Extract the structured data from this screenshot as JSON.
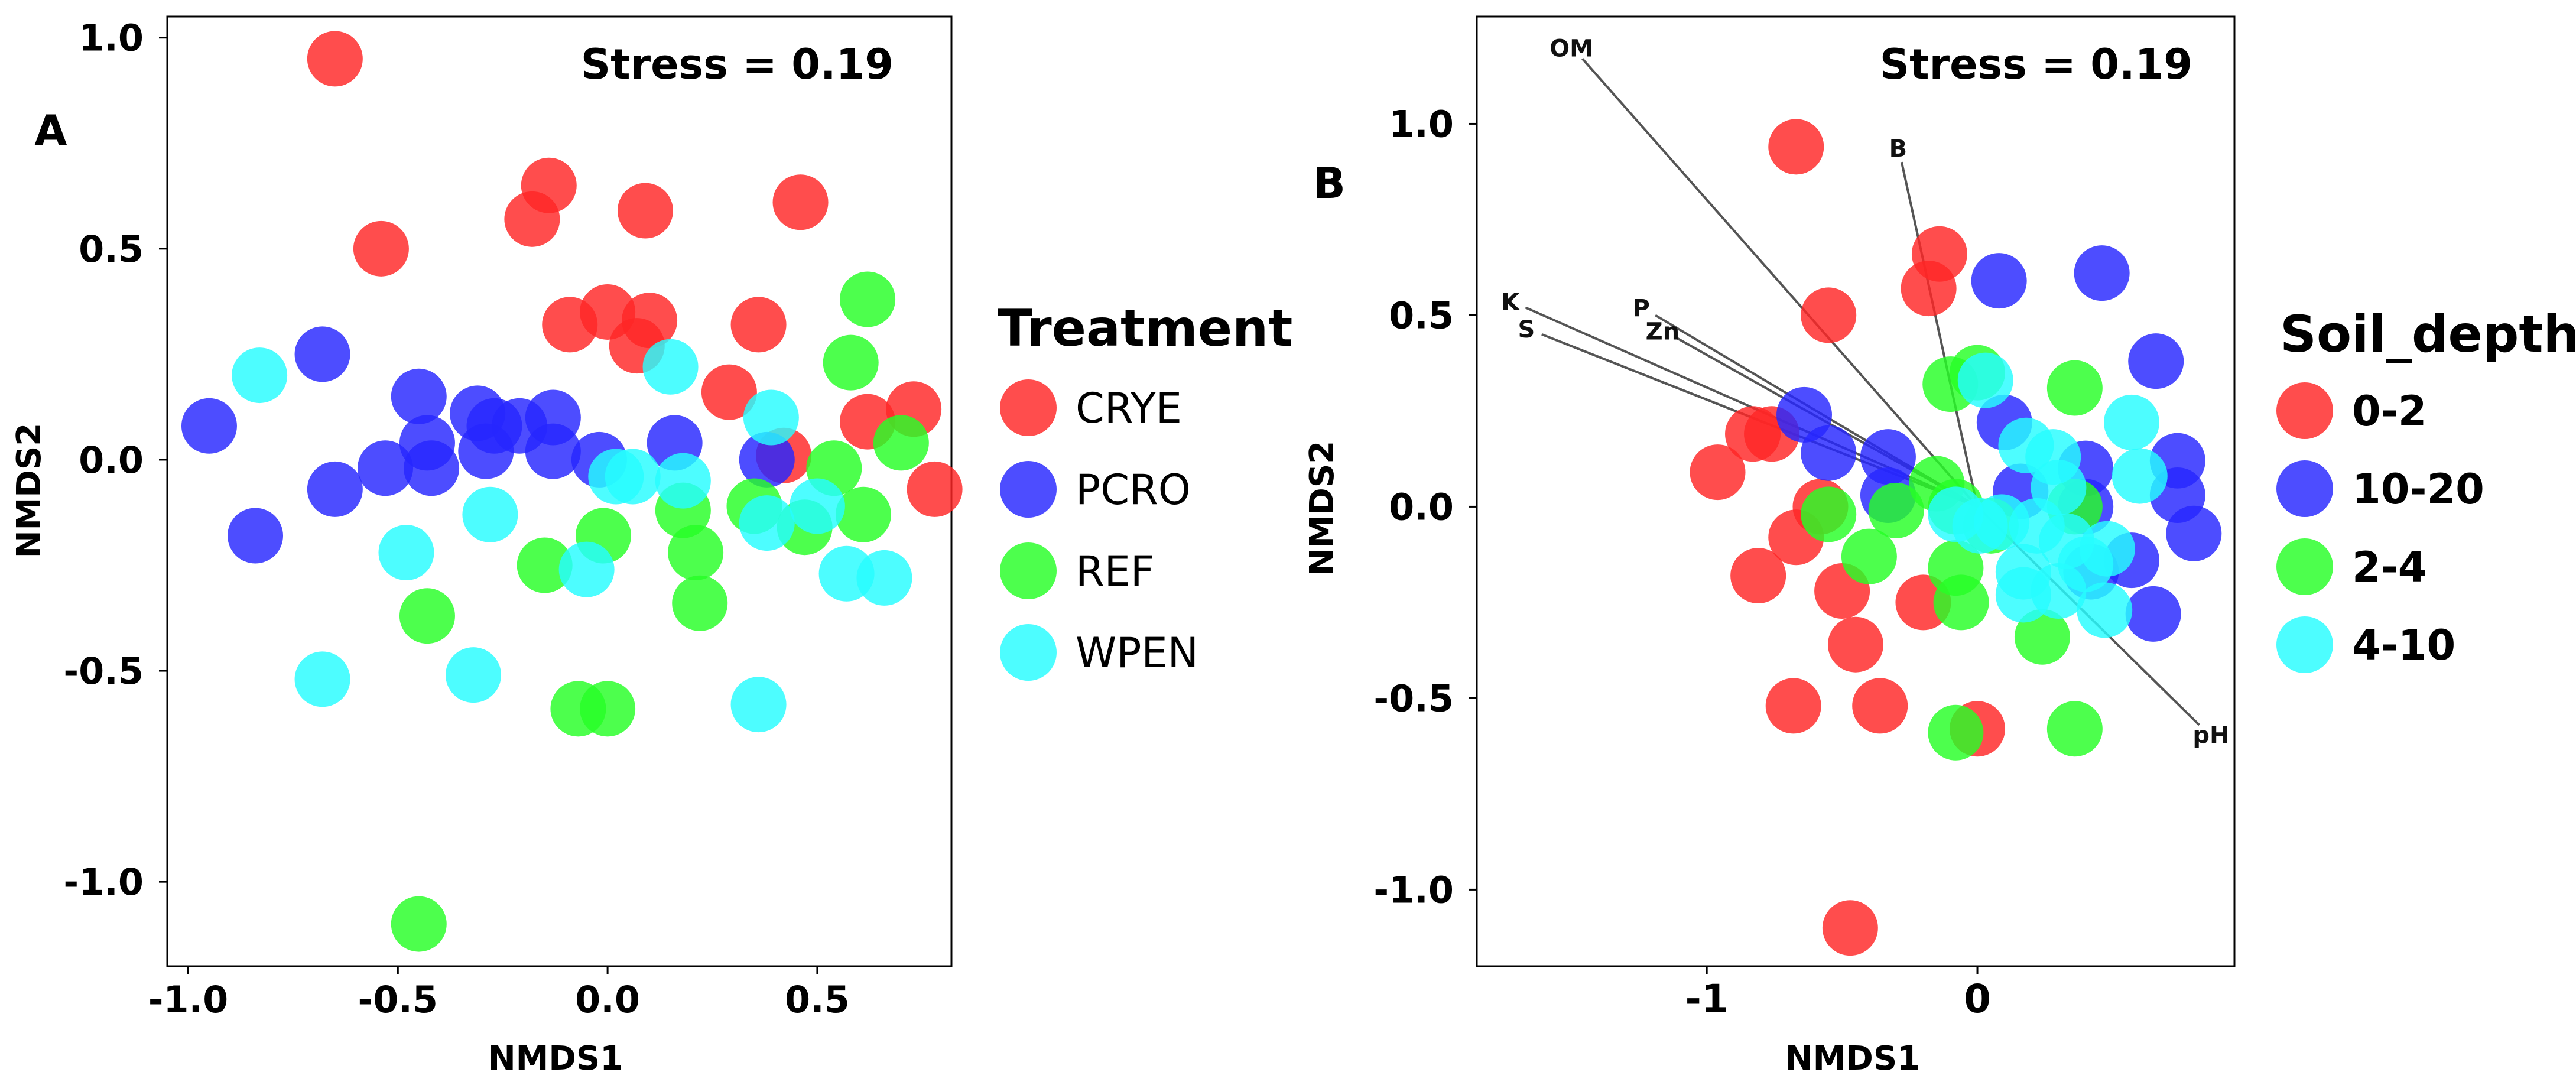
{
  "colors": {
    "CRYE": "#ff2626",
    "PCRO": "#2626ff",
    "REF": "#26ff26",
    "WPEN": "#26fcff",
    "depth_0_2": "#ff2626",
    "depth_10_20": "#2626ff",
    "depth_2_4": "#26ff26",
    "depth_4_10": "#26fcff",
    "arrow": "#555555"
  },
  "chart_data": [
    {
      "panel": "A",
      "type": "scatter",
      "xlabel": "NMDS1",
      "ylabel": "NMDS2",
      "stress_label": "Stress = 0.19",
      "xlim": [
        -1.05,
        0.82
      ],
      "ylim": [
        -1.2,
        1.05
      ],
      "xticks": [
        {
          "v": -1.0,
          "label": "-1.0"
        },
        {
          "v": -0.5,
          "label": "-0.5"
        },
        {
          "v": 0.0,
          "label": "0.0"
        },
        {
          "v": 0.5,
          "label": "0.5"
        }
      ],
      "yticks": [
        {
          "v": 1.0,
          "label": "1.0"
        },
        {
          "v": 0.5,
          "label": "0.5"
        },
        {
          "v": 0.0,
          "label": "0.0"
        },
        {
          "v": -0.5,
          "label": "-0.5"
        },
        {
          "v": -1.0,
          "label": "-1.0"
        }
      ],
      "legend": {
        "title": "Treatment",
        "entries": [
          {
            "key": "CRYE",
            "label": "CRYE"
          },
          {
            "key": "PCRO",
            "label": "PCRO"
          },
          {
            "key": "REF",
            "label": "REF"
          },
          {
            "key": "WPEN",
            "label": "WPEN"
          }
        ]
      },
      "series": [
        {
          "name": "CRYE",
          "points": [
            [
              -0.65,
              0.95
            ],
            [
              -0.54,
              0.5
            ],
            [
              -0.14,
              0.65
            ],
            [
              -0.18,
              0.57
            ],
            [
              0.09,
              0.59
            ],
            [
              0.46,
              0.61
            ],
            [
              -0.09,
              0.32
            ],
            [
              0.0,
              0.35
            ],
            [
              0.1,
              0.33
            ],
            [
              0.07,
              0.27
            ],
            [
              0.36,
              0.32
            ],
            [
              0.29,
              0.16
            ],
            [
              0.62,
              0.09
            ],
            [
              0.73,
              0.12
            ],
            [
              0.42,
              0.01
            ],
            [
              0.78,
              -0.07
            ]
          ]
        },
        {
          "name": "PCRO",
          "points": [
            [
              -0.95,
              0.08
            ],
            [
              -0.68,
              0.25
            ],
            [
              -0.84,
              -0.18
            ],
            [
              -0.65,
              -0.07
            ],
            [
              -0.53,
              -0.02
            ],
            [
              -0.45,
              0.15
            ],
            [
              -0.43,
              0.04
            ],
            [
              -0.42,
              -0.02
            ],
            [
              -0.31,
              0.11
            ],
            [
              -0.27,
              0.08
            ],
            [
              -0.21,
              0.08
            ],
            [
              -0.29,
              0.02
            ],
            [
              -0.13,
              0.1
            ],
            [
              -0.13,
              0.02
            ],
            [
              -0.02,
              0.0
            ],
            [
              0.16,
              0.04
            ],
            [
              0.38,
              0.0
            ]
          ]
        },
        {
          "name": "REF",
          "points": [
            [
              0.62,
              0.38
            ],
            [
              0.58,
              0.23
            ],
            [
              0.7,
              0.04
            ],
            [
              0.54,
              -0.02
            ],
            [
              0.61,
              -0.13
            ],
            [
              0.47,
              -0.16
            ],
            [
              0.35,
              -0.11
            ],
            [
              0.18,
              -0.12
            ],
            [
              0.21,
              -0.22
            ],
            [
              0.22,
              -0.34
            ],
            [
              -0.01,
              -0.18
            ],
            [
              -0.15,
              -0.25
            ],
            [
              -0.43,
              -0.37
            ],
            [
              -0.07,
              -0.59
            ],
            [
              0.0,
              -0.59
            ],
            [
              -0.45,
              -1.1
            ]
          ]
        },
        {
          "name": "WPEN",
          "points": [
            [
              -0.83,
              0.2
            ],
            [
              0.15,
              0.22
            ],
            [
              0.39,
              0.1
            ],
            [
              0.02,
              -0.04
            ],
            [
              0.06,
              -0.04
            ],
            [
              0.18,
              -0.05
            ],
            [
              0.5,
              -0.11
            ],
            [
              0.38,
              -0.15
            ],
            [
              0.57,
              -0.27
            ],
            [
              0.66,
              -0.28
            ],
            [
              -0.05,
              -0.26
            ],
            [
              -0.48,
              -0.22
            ],
            [
              -0.28,
              -0.13
            ],
            [
              -0.68,
              -0.52
            ],
            [
              -0.32,
              -0.51
            ],
            [
              0.36,
              -0.58
            ]
          ]
        }
      ]
    },
    {
      "panel": "B",
      "type": "scatter",
      "xlabel": "NMDS1",
      "ylabel": "NMDS2",
      "stress_label": "Stress = 0.19",
      "xlim": [
        -1.85,
        0.95
      ],
      "ylim": [
        -1.2,
        1.28
      ],
      "xticks": [
        {
          "v": -1,
          "label": "-1"
        },
        {
          "v": 0,
          "label": "0"
        }
      ],
      "yticks": [
        {
          "v": 1.0,
          "label": "1.0"
        },
        {
          "v": 0.5,
          "label": "0.5"
        },
        {
          "v": 0.0,
          "label": "0.0"
        },
        {
          "v": -0.5,
          "label": "-0.5"
        },
        {
          "v": -1.0,
          "label": "-1.0"
        }
      ],
      "legend": {
        "title": "Soil_depth",
        "entries": [
          {
            "key": "depth_0_2",
            "label": "0-2"
          },
          {
            "key": "depth_10_20",
            "label": "10-20"
          },
          {
            "key": "depth_2_4",
            "label": "2-4"
          },
          {
            "key": "depth_4_10",
            "label": "4-10"
          }
        ]
      },
      "vectors": [
        {
          "label": "OM",
          "x": -1.46,
          "y": 1.17
        },
        {
          "label": "B",
          "x": -0.28,
          "y": 0.9
        },
        {
          "label": "K",
          "x": -1.67,
          "y": 0.52
        },
        {
          "label": "S",
          "x": -1.61,
          "y": 0.45
        },
        {
          "label": "P",
          "x": -1.19,
          "y": 0.5
        },
        {
          "label": "Zn",
          "x": -1.11,
          "y": 0.44
        },
        {
          "label": "pH",
          "x": 0.82,
          "y": -0.57
        }
      ],
      "series": [
        {
          "name": "0-2",
          "key": "depth_0_2",
          "points": [
            [
              -0.67,
              0.94
            ],
            [
              -0.55,
              0.5
            ],
            [
              -0.14,
              0.66
            ],
            [
              -0.18,
              0.57
            ],
            [
              -0.76,
              0.19
            ],
            [
              -0.83,
              0.19
            ],
            [
              -0.96,
              0.09
            ],
            [
              -0.58,
              0.0
            ],
            [
              -0.67,
              -0.08
            ],
            [
              -0.81,
              -0.18
            ],
            [
              -0.5,
              -0.22
            ],
            [
              -0.45,
              -0.36
            ],
            [
              -0.2,
              -0.25
            ],
            [
              -0.68,
              -0.52
            ],
            [
              -0.36,
              -0.52
            ],
            [
              0.0,
              -0.58
            ],
            [
              -0.47,
              -1.1
            ]
          ]
        },
        {
          "name": "10-20",
          "key": "depth_10_20",
          "points": [
            [
              0.08,
              0.59
            ],
            [
              0.46,
              0.61
            ],
            [
              0.1,
              0.22
            ],
            [
              0.66,
              0.38
            ],
            [
              -0.64,
              0.24
            ],
            [
              -0.55,
              0.14
            ],
            [
              -0.33,
              0.13
            ],
            [
              -0.33,
              0.03
            ],
            [
              0.16,
              0.04
            ],
            [
              0.4,
              0.1
            ],
            [
              0.74,
              0.12
            ],
            [
              0.74,
              0.03
            ],
            [
              0.4,
              0.0
            ],
            [
              0.8,
              -0.07
            ],
            [
              0.42,
              -0.17
            ],
            [
              0.57,
              -0.14
            ],
            [
              0.65,
              -0.28
            ]
          ]
        },
        {
          "name": "2-4",
          "key": "depth_2_4",
          "points": [
            [
              0.0,
              0.35
            ],
            [
              -0.1,
              0.32
            ],
            [
              0.36,
              0.31
            ],
            [
              -0.55,
              -0.02
            ],
            [
              -0.3,
              -0.01
            ],
            [
              -0.15,
              0.06
            ],
            [
              -0.08,
              0.0
            ],
            [
              0.05,
              -0.05
            ],
            [
              -0.4,
              -0.13
            ],
            [
              0.36,
              0.0
            ],
            [
              -0.08,
              -0.16
            ],
            [
              -0.06,
              -0.25
            ],
            [
              0.24,
              -0.34
            ],
            [
              -0.08,
              -0.59
            ],
            [
              0.36,
              -0.58
            ]
          ]
        },
        {
          "name": "4-10",
          "key": "depth_4_10",
          "points": [
            [
              0.03,
              0.33
            ],
            [
              0.57,
              0.22
            ],
            [
              0.18,
              0.16
            ],
            [
              0.28,
              0.13
            ],
            [
              0.6,
              0.08
            ],
            [
              0.3,
              0.05
            ],
            [
              0.09,
              -0.04
            ],
            [
              0.01,
              -0.05
            ],
            [
              -0.08,
              -0.02
            ],
            [
              0.22,
              -0.05
            ],
            [
              0.33,
              -0.09
            ],
            [
              0.48,
              -0.11
            ],
            [
              0.4,
              -0.15
            ],
            [
              0.17,
              -0.17
            ],
            [
              0.3,
              -0.22
            ],
            [
              0.17,
              -0.23
            ],
            [
              0.47,
              -0.27
            ]
          ]
        }
      ]
    }
  ]
}
